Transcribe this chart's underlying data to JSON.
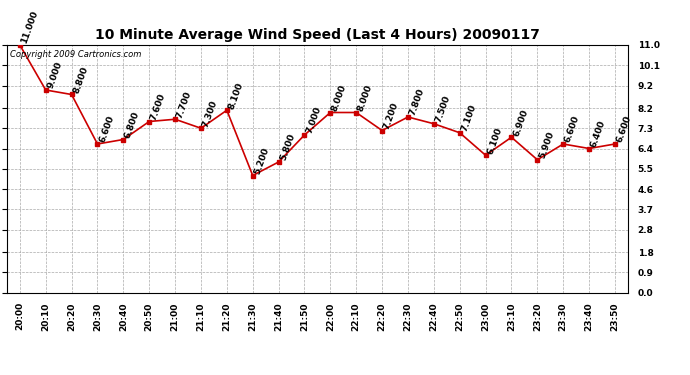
{
  "title": "10 Minute Average Wind Speed (Last 4 Hours) 20090117",
  "copyright": "Copyright 2009 Cartronics.com",
  "times": [
    "20:00",
    "20:10",
    "20:20",
    "20:30",
    "20:40",
    "20:50",
    "21:00",
    "21:10",
    "21:20",
    "21:30",
    "21:40",
    "21:50",
    "22:00",
    "22:10",
    "22:20",
    "22:30",
    "22:40",
    "22:50",
    "23:00",
    "23:10",
    "23:20",
    "23:30",
    "23:40",
    "23:50"
  ],
  "values": [
    11.0,
    9.0,
    8.8,
    6.6,
    6.8,
    7.6,
    7.7,
    7.3,
    8.1,
    5.2,
    5.8,
    7.0,
    8.0,
    8.0,
    7.2,
    7.8,
    7.5,
    7.1,
    6.1,
    6.9,
    5.9,
    6.6,
    6.4,
    6.6
  ],
  "ylim": [
    0.0,
    11.0
  ],
  "yticks": [
    0.0,
    0.9,
    1.8,
    2.8,
    3.7,
    4.6,
    5.5,
    6.4,
    7.3,
    8.2,
    9.2,
    10.1,
    11.0
  ],
  "line_color": "#cc0000",
  "marker_color": "#cc0000",
  "bg_color": "#ffffff",
  "grid_color": "#aaaaaa",
  "title_fontsize": 10,
  "label_fontsize": 6.5,
  "annotation_fontsize": 6.5,
  "copyright_fontsize": 6
}
